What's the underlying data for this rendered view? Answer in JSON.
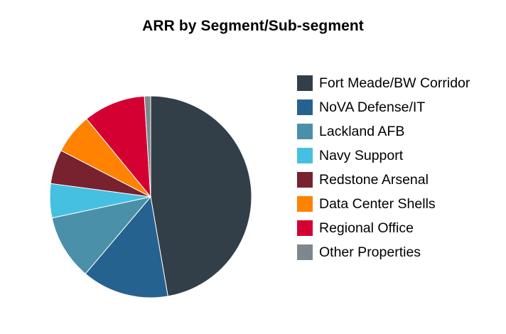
{
  "chart_data": {
    "type": "pie",
    "title": "ARR by Segment/Sub-segment",
    "legend_position": "right",
    "start_angle_deg": 0,
    "direction": "clockwise",
    "categories": [
      "Fort Meade/BW Corridor",
      "NoVA Defense/IT",
      "Lackland AFB",
      "Navy Support",
      "Redstone Arsenal",
      "Data Center Shells",
      "Regional Office",
      "Other Properties"
    ],
    "values": [
      47.5,
      14.0,
      10.5,
      5.5,
      5.5,
      6.5,
      10.0,
      1.0
    ],
    "colors": [
      "#333f48",
      "#26628f",
      "#4a90a8",
      "#45c0e0",
      "#78222f",
      "#ff8200",
      "#d50032",
      "#7e878d"
    ]
  }
}
